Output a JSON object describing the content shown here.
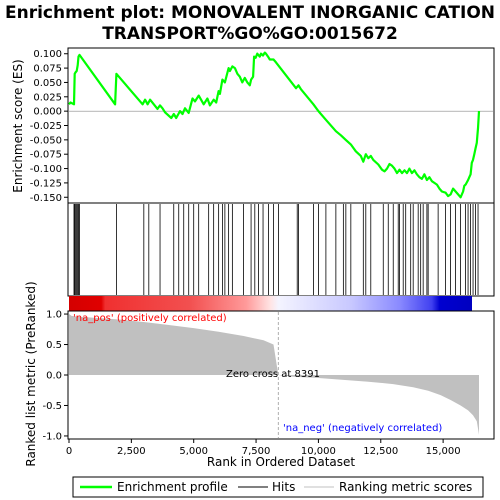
{
  "chart_data": {
    "type": "line",
    "title_line1": "Enrichment plot: MONOVALENT INORGANIC CATION",
    "title_line2": "TRANSPORT%GO%GO:0015672",
    "top_panel": {
      "ylabel": "Enrichment score (ES)",
      "ylim": [
        -0.16,
        0.11
      ],
      "yticks": [
        0.1,
        0.075,
        0.05,
        0.025,
        0.0,
        -0.025,
        -0.05,
        -0.075,
        -0.1,
        -0.125,
        -0.15
      ],
      "ytick_labels": [
        "0.100",
        "0.075",
        "0.050",
        "0.025",
        "0.000",
        "-0.025",
        "-0.050",
        "-0.075",
        "-0.100",
        "-0.125",
        "-0.150"
      ],
      "series": {
        "name": "Enrichment profile",
        "color": "#00ff00",
        "x": [
          0,
          60,
          200,
          230,
          270,
          310,
          350,
          380,
          420,
          1850,
          1900,
          2950,
          3050,
          3150,
          3250,
          3550,
          3650,
          3750,
          3850,
          4100,
          4200,
          4300,
          4450,
          4550,
          4650,
          4800,
          4950,
          5050,
          5200,
          5400,
          5550,
          5650,
          5800,
          5900,
          6000,
          6050,
          6150,
          6250,
          6400,
          6450,
          6550,
          6650,
          6750,
          6850,
          6950,
          7050,
          7150,
          7250,
          7300,
          7380,
          7420,
          7480,
          7550,
          7650,
          7700,
          7780,
          7850,
          7900,
          7980,
          8050,
          8200,
          8300,
          9100,
          9200,
          9300,
          9800,
          10000,
          10300,
          10700,
          10900,
          11100,
          11300,
          11500,
          11700,
          11800,
          11900,
          12000,
          12100,
          12200,
          12400,
          12550,
          12650,
          12750,
          12850,
          12950,
          13050,
          13150,
          13250,
          13350,
          13450,
          13550,
          13650,
          13750,
          13850,
          13950,
          14050,
          14150,
          14250,
          14350,
          14450,
          14550,
          14650,
          14750,
          14850,
          14950,
          15100,
          15200,
          15300,
          15400,
          15500,
          15600,
          15700,
          15800,
          15850,
          15900,
          16000,
          16050,
          16100,
          16150,
          16200,
          16250,
          16300,
          16350,
          16380,
          16400,
          16420,
          16440
        ],
        "y": [
          0.012,
          0.015,
          0.012,
          0.065,
          0.068,
          0.07,
          0.08,
          0.095,
          0.098,
          0.012,
          0.065,
          0.012,
          0.02,
          0.012,
          0.02,
          0.004,
          0.01,
          0.005,
          -0.002,
          -0.012,
          -0.005,
          -0.012,
          0.0,
          -0.005,
          0.005,
          -0.003,
          0.022,
          0.017,
          0.027,
          0.012,
          0.022,
          0.01,
          0.02,
          0.015,
          0.035,
          0.03,
          0.055,
          0.05,
          0.075,
          0.07,
          0.078,
          0.075,
          0.065,
          0.06,
          0.05,
          0.058,
          0.05,
          0.045,
          0.055,
          0.06,
          0.095,
          0.093,
          0.1,
          0.095,
          0.1,
          0.097,
          0.102,
          0.1,
          0.095,
          0.09,
          0.09,
          0.085,
          0.04,
          0.045,
          0.038,
          0.012,
          0.0,
          -0.015,
          -0.035,
          -0.042,
          -0.05,
          -0.058,
          -0.07,
          -0.078,
          -0.088,
          -0.075,
          -0.082,
          -0.078,
          -0.085,
          -0.093,
          -0.102,
          -0.105,
          -0.1,
          -0.092,
          -0.095,
          -0.1,
          -0.108,
          -0.102,
          -0.108,
          -0.103,
          -0.108,
          -0.1,
          -0.108,
          -0.103,
          -0.11,
          -0.115,
          -0.118,
          -0.11,
          -0.12,
          -0.115,
          -0.122,
          -0.125,
          -0.128,
          -0.135,
          -0.14,
          -0.142,
          -0.148,
          -0.145,
          -0.135,
          -0.14,
          -0.145,
          -0.15,
          -0.14,
          -0.13,
          -0.128,
          -0.12,
          -0.115,
          -0.11,
          -0.09,
          -0.085,
          -0.075,
          -0.065,
          -0.055,
          -0.04,
          -0.03,
          -0.015,
          0.0
        ]
      },
      "hits": [
        200,
        230,
        270,
        310,
        350,
        380,
        420,
        1900,
        3000,
        3200,
        3650,
        4200,
        4400,
        4600,
        4800,
        5000,
        5200,
        5600,
        5800,
        6000,
        6150,
        6250,
        6400,
        6550,
        7000,
        7300,
        7450,
        7600,
        7780,
        8000,
        8200,
        8400,
        9150,
        9200,
        9800,
        10000,
        10300,
        10700,
        11000,
        11100,
        11300,
        11800,
        11900,
        12100,
        12600,
        12800,
        13000,
        13200,
        13250,
        13400,
        13500,
        13700,
        13800,
        14000,
        14100,
        14200,
        14350,
        14400,
        14800,
        15100,
        15300,
        15500,
        15700,
        15900,
        16000,
        16100,
        16200,
        16300,
        16400
      ]
    },
    "bottom_panel": {
      "ylabel": "Ranked list metric (PreRanked)",
      "xlabel": "Rank in Ordered Dataset",
      "xlim": [
        0,
        17000
      ],
      "ylim": [
        -1.05,
        1.05
      ],
      "yticks": [
        1.0,
        0.5,
        0.0,
        -0.5,
        -1.0
      ],
      "ytick_labels": [
        "1.0",
        "0.5",
        "0.0",
        "-0.5",
        "-1.0"
      ],
      "xticks": [
        0,
        2500,
        5000,
        7500,
        10000,
        12500,
        15000
      ],
      "xtick_labels": [
        "0",
        "2,500",
        "5,000",
        "7,500",
        "10,000",
        "12,500",
        "15,000"
      ],
      "zero_cross": 8391,
      "zero_cross_label": "Zero cross at 8391",
      "pos_label": "'na_pos' (positively correlated)",
      "neg_label": "'na_neg' (negatively correlated)",
      "pos_color": "#ff0000",
      "neg_color": "#0000ff",
      "metric_color": "#c0c0c0",
      "n_genes": 16440,
      "metric_profile": {
        "x": [
          0,
          100,
          300,
          1000,
          2000,
          3000,
          4000,
          5000,
          6000,
          7000,
          7800,
          8200,
          8391,
          9000,
          10000,
          11000,
          12000,
          13000,
          13800,
          14400,
          14900,
          15300,
          15700,
          16000,
          16200,
          16350,
          16440
        ],
        "y": [
          1.0,
          0.97,
          0.96,
          0.94,
          0.91,
          0.87,
          0.82,
          0.77,
          0.71,
          0.64,
          0.57,
          0.5,
          0.0,
          -0.03,
          -0.05,
          -0.08,
          -0.11,
          -0.15,
          -0.2,
          -0.26,
          -0.33,
          -0.41,
          -0.5,
          -0.58,
          -0.66,
          -0.76,
          -0.98
        ]
      }
    },
    "legend": {
      "items": [
        {
          "label": "Enrichment profile",
          "color": "#00ff00",
          "kind": "line"
        },
        {
          "label": "Hits",
          "color": "#000000",
          "kind": "line"
        },
        {
          "label": "Ranking metric scores",
          "color": "#c0c0c0",
          "kind": "line"
        }
      ]
    }
  }
}
